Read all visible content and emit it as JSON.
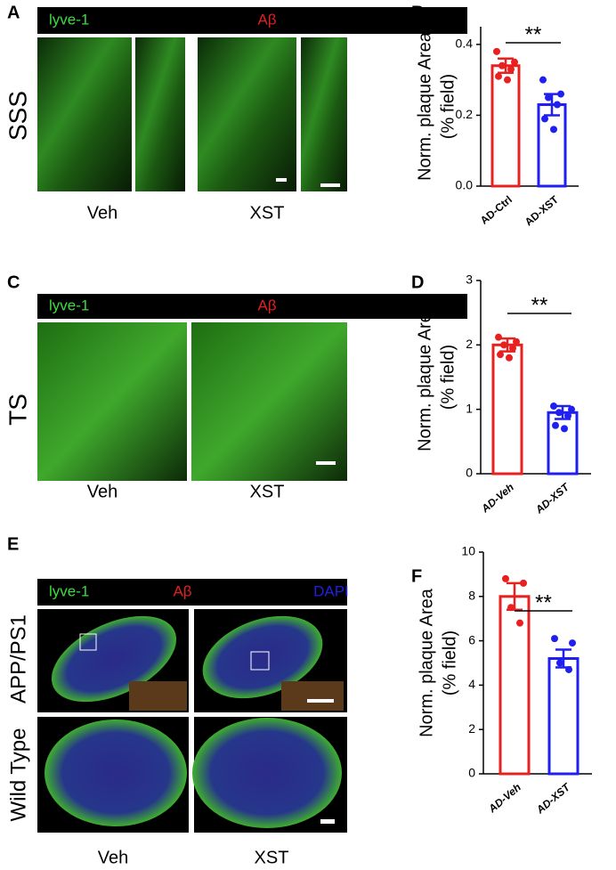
{
  "panels": [
    {
      "label": "A",
      "channels": [
        "lyve-1",
        "Aβ"
      ],
      "row_labels": [
        "SSS"
      ],
      "columns": [
        "Veh",
        "XST"
      ]
    },
    {
      "label": "C",
      "channels": [
        "lyve-1",
        "Aβ"
      ],
      "row_labels": [
        "TS"
      ],
      "columns": [
        "Veh",
        "XST"
      ]
    },
    {
      "label": "E",
      "channels": [
        "lyve-1",
        "Aβ",
        "DAPI"
      ],
      "row_labels": [
        "APP/PS1",
        "Wild Type"
      ],
      "columns": [
        "Veh",
        "XST"
      ]
    }
  ],
  "chart_data": [
    {
      "type": "bar",
      "label": "B",
      "ylabel": [
        "Norm. plaque Area",
        "(% field)"
      ],
      "categories": [
        "AD-Ctrl",
        "AD-XST"
      ],
      "values": [
        0.34,
        0.23
      ],
      "errors": [
        0.02,
        0.03
      ],
      "colors": [
        "#e8201f",
        "#1f1ff0"
      ],
      "points": [
        [
          0.38,
          0.35,
          0.34,
          0.33,
          0.31,
          0.3
        ],
        [
          0.3,
          0.26,
          0.25,
          0.23,
          0.19,
          0.16
        ]
      ],
      "significance": "**",
      "ylim": [
        0,
        0.45
      ],
      "yticks": [
        {
          "value": 0,
          "label": "0.0"
        },
        0.2,
        0.4
      ]
    },
    {
      "type": "bar",
      "label": "D",
      "ylabel": [
        "Norm. plaque Area",
        "(% field)"
      ],
      "categories": [
        "AD-Veh",
        "AD-XST"
      ],
      "values": [
        2.0,
        0.95
      ],
      "errors": [
        0.1,
        0.1
      ],
      "colors": [
        "#e8201f",
        "#1f1ff0"
      ],
      "points": [
        [
          2.12,
          2.05,
          2.0,
          1.95,
          1.85,
          1.8
        ],
        [
          1.05,
          1.0,
          0.95,
          0.9,
          0.75,
          0.7
        ]
      ],
      "significance": "**",
      "ylim": [
        0,
        3
      ],
      "yticks": [
        0,
        1,
        2,
        3
      ]
    },
    {
      "type": "bar",
      "label": "F",
      "ylabel": [
        "Norm. plaque Area",
        "(% field)"
      ],
      "categories": [
        "AD-Veh",
        "AD-XST"
      ],
      "values": [
        8.0,
        5.2
      ],
      "errors": [
        0.6,
        0.4
      ],
      "colors": [
        "#e8201f",
        "#1f1ff0"
      ],
      "points": [
        [
          8.8,
          8.6,
          7.5,
          6.8
        ],
        [
          6.1,
          5.9,
          5.0,
          4.7
        ]
      ],
      "significance": "**",
      "ylim": [
        0,
        10
      ],
      "yticks": [
        0,
        2,
        4,
        6,
        8,
        10
      ]
    }
  ]
}
